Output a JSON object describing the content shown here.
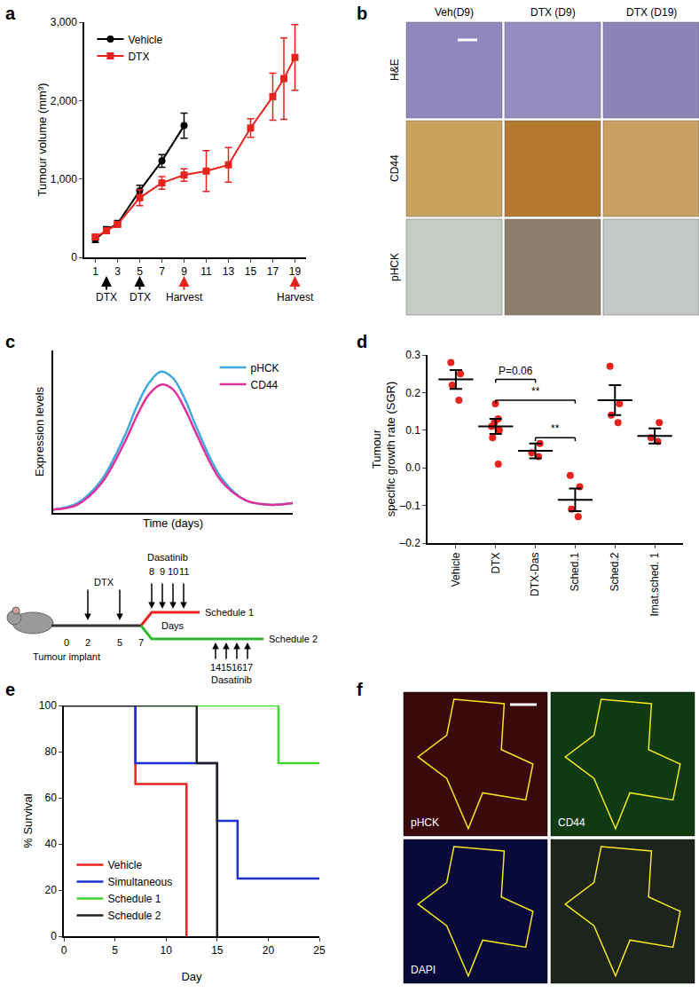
{
  "chart_data": [
    {
      "panel": "a",
      "type": "line",
      "y_label": "Tumour volume (mm³)",
      "xlim": [
        0,
        20
      ],
      "xticks": [
        1,
        3,
        5,
        7,
        9,
        11,
        13,
        15,
        17,
        19
      ],
      "ylim": [
        0,
        3000
      ],
      "yticks": [
        0,
        {
          "value": 1000,
          "label": "1,000"
        },
        {
          "value": 2000,
          "label": "2,000"
        },
        {
          "value": 3000,
          "label": "3,000"
        }
      ],
      "grid": false,
      "legend": "upper left",
      "series": [
        {
          "name": "Vehicle",
          "color": "#000000",
          "marker": "circle",
          "x": [
            1,
            2,
            3,
            5,
            7,
            9
          ],
          "values": [
            230,
            350,
            430,
            850,
            1230,
            1680
          ],
          "errors": [
            40,
            40,
            40,
            70,
            80,
            160
          ]
        },
        {
          "name": "DTX",
          "color": "#e8221c",
          "marker": "square",
          "x": [
            1,
            2,
            3,
            5,
            7,
            9,
            11,
            13,
            15,
            17,
            18,
            19
          ],
          "values": [
            260,
            340,
            420,
            760,
            950,
            1050,
            1100,
            1180,
            1650,
            2050,
            2280,
            2550
          ],
          "errors": [
            30,
            30,
            30,
            100,
            80,
            80,
            260,
            220,
            120,
            300,
            520,
            420
          ]
        }
      ],
      "treatments": {
        "label": "DTX",
        "x": [
          2,
          5
        ],
        "color": "#000000"
      },
      "harvests": {
        "label": "Harvest",
        "x": [
          9,
          19
        ],
        "color": "#e8221c"
      }
    },
    {
      "panel": "c",
      "type": "line",
      "x_label": "Time (days)",
      "y_label": "Expression levels",
      "xlim": [
        0,
        10
      ],
      "ylim": [
        0,
        1
      ],
      "tick_labels": false,
      "grid": false,
      "legend": "upper right",
      "x": [
        0,
        1,
        2,
        3,
        3.5,
        4,
        4.5,
        5,
        5.5,
        6,
        7,
        8,
        9,
        10
      ],
      "series": [
        {
          "name": "pHCK",
          "color": "#3fa9e0",
          "values": [
            0.02,
            0.06,
            0.2,
            0.48,
            0.66,
            0.8,
            0.87,
            0.83,
            0.7,
            0.52,
            0.22,
            0.08,
            0.05,
            0.06
          ]
        },
        {
          "name": "CD44",
          "color": "#e0309a",
          "values": [
            0.02,
            0.05,
            0.18,
            0.44,
            0.6,
            0.73,
            0.79,
            0.76,
            0.64,
            0.48,
            0.2,
            0.08,
            0.05,
            0.06
          ]
        }
      ],
      "schedule_diagram": {
        "treatment": "DTX",
        "treatment_days": [
          2,
          5
        ],
        "day_marks": [
          0,
          2,
          5,
          7
        ],
        "axis_label": "Days",
        "start_label": "Tumour implant",
        "drug": "Dasatinib",
        "schedules": [
          {
            "name": "Schedule 1",
            "days": [
              8,
              9,
              10,
              11
            ],
            "color": "#e8221c"
          },
          {
            "name": "Schedule 2",
            "days": [
              14,
              15,
              16,
              17
            ],
            "color": "#2eb82e"
          }
        ]
      }
    },
    {
      "panel": "d",
      "type": "scatter",
      "y_label": [
        "Tumour",
        "specific growth rate (SGR)"
      ],
      "categories": [
        "Vehicle",
        "DTX",
        "DTX-Das",
        "Sched.1",
        "Sched.2",
        "Imat.sched. 1"
      ],
      "points": [
        [
          0.28,
          0.25,
          0.22,
          0.18
        ],
        [
          0.17,
          0.13,
          0.12,
          0.11,
          0.1,
          0.08,
          0.01
        ],
        [
          0.065,
          0.04,
          0.03
        ],
        [
          -0.02,
          -0.05,
          -0.11,
          -0.13
        ],
        [
          0.27,
          0.17,
          0.14,
          0.12
        ],
        [
          0.12,
          0.08,
          0.07
        ]
      ],
      "means": [
        0.235,
        0.11,
        0.045,
        -0.085,
        0.18,
        0.085
      ],
      "errors": [
        0.025,
        0.02,
        0.02,
        0.03,
        0.04,
        0.02
      ],
      "color": "#e8221c",
      "marker": "circle",
      "grid": false,
      "ylim": [
        -0.2,
        0.3
      ],
      "yticks": [
        {
          "value": -0.2,
          "label": "–0.2"
        },
        {
          "value": -0.1,
          "label": "–0.1"
        },
        {
          "value": 0,
          "label": "0.0"
        },
        0.1,
        0.2,
        0.3
      ],
      "comparisons": [
        {
          "from": "DTX",
          "to": "DTX-Das",
          "y": 0.235,
          "label": "P=0.06"
        },
        {
          "from": "DTX",
          "to": "Sched.1",
          "y": 0.18,
          "label": "**"
        },
        {
          "from": "DTX-Das",
          "to": "Sched.1",
          "y": 0.08,
          "label": "**"
        }
      ]
    },
    {
      "panel": "e",
      "type": "step",
      "x_label": "Day",
      "y_label": "% Survival",
      "xlim": [
        0,
        25
      ],
      "xticks": [
        0,
        5,
        10,
        15,
        20,
        25
      ],
      "ylim": [
        0,
        100
      ],
      "yticks": [
        0,
        20,
        40,
        60,
        80,
        100
      ],
      "grid": false,
      "legend": "lower left",
      "series": [
        {
          "name": "Vehicle",
          "color": "#e8221c",
          "x": [
            0,
            7,
            12
          ],
          "values": [
            100,
            66,
            0
          ]
        },
        {
          "name": "Simultaneous",
          "color": "#1f2fd6",
          "x": [
            0,
            7,
            15,
            17,
            25
          ],
          "values": [
            100,
            75,
            50,
            25,
            25
          ]
        },
        {
          "name": "Schedule 1",
          "color": "#3fd62e",
          "x": [
            0,
            21,
            25
          ],
          "values": [
            100,
            75,
            75
          ]
        },
        {
          "name": "Schedule 2",
          "color": "#222222",
          "x": [
            0,
            13,
            15
          ],
          "values": [
            100,
            75,
            0
          ]
        }
      ]
    }
  ],
  "images": [
    {
      "panel": "b",
      "columns": [
        "Veh(D9)",
        "DTX (D9)",
        "DTX (D19)"
      ],
      "rows": [
        "H&E",
        "CD44",
        "pHCK"
      ]
    },
    {
      "panel": "f",
      "tiles": [
        "pHCK",
        "CD44",
        "DAPI"
      ]
    }
  ]
}
